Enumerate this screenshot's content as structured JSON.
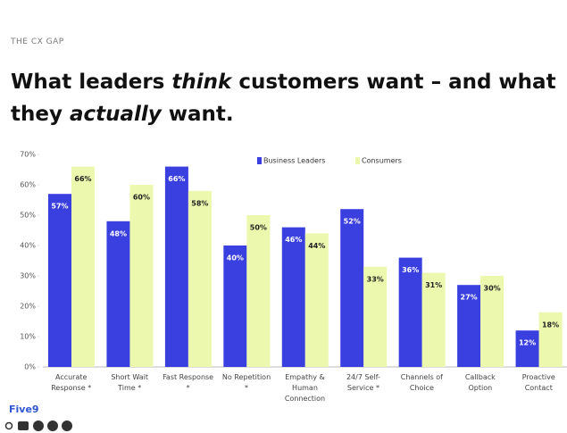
{
  "header": {
    "eyebrow": "THE CX GAP",
    "title_lines": [
      [
        "What leaders ",
        "think",
        " customers want – and what"
      ],
      [
        "they ",
        "actually",
        " want."
      ]
    ]
  },
  "chart_data": {
    "type": "bar",
    "categories": [
      "Accurate Response *",
      "Short Wait Time *",
      "Fast Response *",
      "No Repetition *",
      "Empathy & Human Connection",
      "24/7 Self-Service *",
      "Channels of Choice",
      "Callback Option",
      "Proactive Contact"
    ],
    "series": [
      {
        "name": "Business Leaders",
        "color": "#3a3fe0",
        "values": [
          57,
          48,
          66,
          40,
          46,
          52,
          36,
          27,
          12
        ],
        "value_labels": [
          "57%",
          "48%",
          "66%",
          "40%",
          "46%",
          "52%",
          "36%",
          "27%",
          "12%"
        ]
      },
      {
        "name": "Consumers",
        "color": "#ecf8ad",
        "values": [
          66,
          60,
          58,
          50,
          44,
          33,
          31,
          30,
          18
        ],
        "value_labels": [
          "66%",
          "60%",
          "58%",
          "50%",
          "44%",
          "33%",
          "31%",
          "30%",
          "18%"
        ]
      }
    ],
    "ylim": [
      0,
      70
    ],
    "yticks": [
      {
        "value": 0,
        "label": "0%"
      },
      {
        "value": 10,
        "label": "10%"
      },
      {
        "value": 20,
        "label": "20%"
      },
      {
        "value": 30,
        "label": "30%"
      },
      {
        "value": 40,
        "label": "40%"
      },
      {
        "value": 50,
        "label": "50%"
      },
      {
        "value": 60,
        "label": "60%"
      },
      {
        "value": 70,
        "label": "70%"
      }
    ],
    "legend": "top"
  },
  "footer": {
    "logo": "Five9"
  }
}
